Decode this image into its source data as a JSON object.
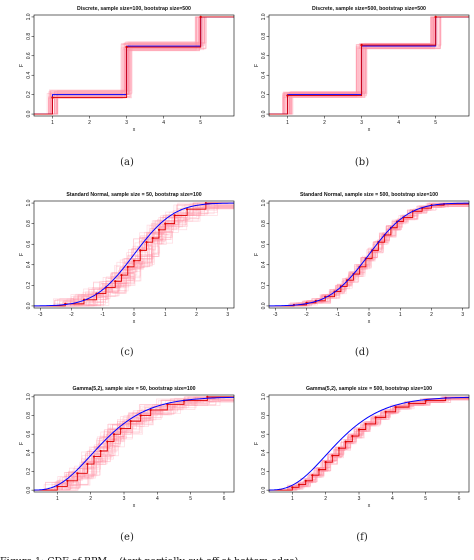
{
  "figure": {
    "footer_text": "Figure 1: CDF of BPM... (text partially cut off at bottom edge)"
  },
  "chart_data": [
    {
      "type": "line",
      "title": "Discrete, sample size=100, bootstrap size=500",
      "caption": "(a)",
      "xlabel": "x",
      "ylabel": "F",
      "xlim": [
        0.5,
        5.9
      ],
      "ylim": [
        -0.02,
        1.02
      ],
      "xticks": [
        "1",
        "2",
        "3",
        "4",
        "5"
      ],
      "yticks": [
        "0.0",
        "0.2",
        "0.4",
        "0.6",
        "0.8",
        "1.0"
      ],
      "kind": "discrete",
      "support": [
        1,
        3,
        5
      ],
      "true_steps": [
        0.2,
        0.7,
        1.0
      ],
      "estimate_steps": [
        0.17,
        0.69,
        1.0
      ],
      "series": [
        {
          "name": "",
          "color": "#0000ff",
          "role": "true CDF"
        },
        {
          "name": "",
          "color": "#ff0000",
          "role": "estimate"
        }
      ]
    },
    {
      "type": "line",
      "title": "Discrete, sample size=500, bootstrap size=500",
      "caption": "(b)",
      "xlabel": "x",
      "ylabel": "F",
      "xlim": [
        0.5,
        5.9
      ],
      "ylim": [
        -0.02,
        1.02
      ],
      "xticks": [
        "1",
        "2",
        "3",
        "4",
        "5"
      ],
      "yticks": [
        "0.0",
        "0.2",
        "0.4",
        "0.6",
        "0.8",
        "1.0"
      ],
      "kind": "discrete",
      "support": [
        1,
        3,
        5
      ],
      "true_steps": [
        0.2,
        0.7,
        1.0
      ],
      "estimate_steps": [
        0.19,
        0.71,
        1.0
      ],
      "series": [
        {
          "name": "",
          "color": "#0000ff",
          "role": "true CDF"
        },
        {
          "name": "",
          "color": "#ff0000",
          "role": "estimate"
        }
      ]
    },
    {
      "type": "line",
      "title": "Standard Normal, sample size = 50, bootstrap size=100",
      "caption": "(c)",
      "xlabel": "x",
      "ylabel": "F",
      "xlim": [
        -3.2,
        3.2
      ],
      "ylim": [
        -0.02,
        1.02
      ],
      "xticks": [
        "-3",
        "-2",
        "-1",
        "0",
        "1",
        "2",
        "3"
      ],
      "yticks": [
        "0.0",
        "0.2",
        "0.4",
        "0.6",
        "0.8",
        "1.0"
      ],
      "kind": "normal",
      "estimate_points": [
        [
          -2.2,
          0.02
        ],
        [
          -1.6,
          0.06
        ],
        [
          -1.2,
          0.12
        ],
        [
          -0.9,
          0.18
        ],
        [
          -0.6,
          0.24
        ],
        [
          -0.4,
          0.3
        ],
        [
          -0.2,
          0.38
        ],
        [
          0.0,
          0.44
        ],
        [
          0.2,
          0.54
        ],
        [
          0.4,
          0.62
        ],
        [
          0.6,
          0.66
        ],
        [
          0.8,
          0.74
        ],
        [
          1.0,
          0.8
        ],
        [
          1.3,
          0.88
        ],
        [
          1.7,
          0.94
        ],
        [
          2.3,
          1.0
        ]
      ],
      "series": [
        {
          "name": "",
          "color": "#0000ff",
          "role": "true CDF"
        },
        {
          "name": "",
          "color": "#ff0000",
          "role": "estimate"
        }
      ]
    },
    {
      "type": "line",
      "title": "Standard Normal, sample size = 500, bootstrap size=100",
      "caption": "(d)",
      "xlabel": "x",
      "ylabel": "F",
      "xlim": [
        -3.2,
        3.2
      ],
      "ylim": [
        -0.02,
        1.02
      ],
      "xticks": [
        "-3",
        "-2",
        "-1",
        "0",
        "1",
        "2",
        "3"
      ],
      "yticks": [
        "0.0",
        "0.2",
        "0.4",
        "0.6",
        "0.8",
        "1.0"
      ],
      "kind": "normal",
      "estimate_points": [
        [
          -2.4,
          0.01
        ],
        [
          -2.0,
          0.03
        ],
        [
          -1.7,
          0.05
        ],
        [
          -1.4,
          0.09
        ],
        [
          -1.1,
          0.14
        ],
        [
          -0.9,
          0.19
        ],
        [
          -0.7,
          0.25
        ],
        [
          -0.5,
          0.31
        ],
        [
          -0.3,
          0.38
        ],
        [
          -0.1,
          0.46
        ],
        [
          0.1,
          0.54
        ],
        [
          0.3,
          0.62
        ],
        [
          0.5,
          0.69
        ],
        [
          0.7,
          0.76
        ],
        [
          0.9,
          0.82
        ],
        [
          1.1,
          0.86
        ],
        [
          1.4,
          0.92
        ],
        [
          1.7,
          0.95
        ],
        [
          2.0,
          0.98
        ],
        [
          2.4,
          0.99
        ]
      ],
      "series": [
        {
          "name": "",
          "color": "#0000ff",
          "role": "true CDF"
        },
        {
          "name": "",
          "color": "#ff0000",
          "role": "estimate"
        }
      ]
    },
    {
      "type": "line",
      "title": "Gamma(5,2), sample size = 50, bootstrap size=100",
      "caption": "(e)",
      "xlabel": "x",
      "ylabel": "F",
      "xlim": [
        0.3,
        6.3
      ],
      "ylim": [
        -0.02,
        1.02
      ],
      "xticks": [
        "1",
        "2",
        "3",
        "4",
        "5",
        "6"
      ],
      "yticks": [
        "0.0",
        "0.2",
        "0.4",
        "0.6",
        "0.8",
        "1.0"
      ],
      "kind": "gamma",
      "estimate_points": [
        [
          1.0,
          0.04
        ],
        [
          1.3,
          0.1
        ],
        [
          1.6,
          0.18
        ],
        [
          1.9,
          0.28
        ],
        [
          2.1,
          0.36
        ],
        [
          2.3,
          0.42
        ],
        [
          2.5,
          0.52
        ],
        [
          2.7,
          0.6
        ],
        [
          2.9,
          0.66
        ],
        [
          3.2,
          0.74
        ],
        [
          3.5,
          0.8
        ],
        [
          3.8,
          0.86
        ],
        [
          4.3,
          0.92
        ],
        [
          4.8,
          0.96
        ],
        [
          5.5,
          1.0
        ]
      ],
      "series": [
        {
          "name": "",
          "color": "#0000ff",
          "role": "true CDF"
        },
        {
          "name": "",
          "color": "#ff0000",
          "role": "estimate"
        }
      ]
    },
    {
      "type": "line",
      "title": "Gamma(5,2), sample size = 500, bootstrap size=100",
      "caption": "(f)",
      "xlabel": "x",
      "ylabel": "F",
      "xlim": [
        0.3,
        6.3
      ],
      "ylim": [
        -0.02,
        1.02
      ],
      "xticks": [
        "1",
        "2",
        "3",
        "4",
        "5",
        "6"
      ],
      "yticks": [
        "0.0",
        "0.2",
        "0.4",
        "0.6",
        "0.8",
        "1.0"
      ],
      "kind": "gamma",
      "estimate_points": [
        [
          1.0,
          0.03
        ],
        [
          1.2,
          0.06
        ],
        [
          1.4,
          0.1
        ],
        [
          1.6,
          0.16
        ],
        [
          1.8,
          0.22
        ],
        [
          2.0,
          0.3
        ],
        [
          2.2,
          0.37
        ],
        [
          2.4,
          0.45
        ],
        [
          2.6,
          0.52
        ],
        [
          2.8,
          0.58
        ],
        [
          3.0,
          0.65
        ],
        [
          3.2,
          0.71
        ],
        [
          3.5,
          0.78
        ],
        [
          3.8,
          0.84
        ],
        [
          4.1,
          0.89
        ],
        [
          4.5,
          0.93
        ],
        [
          5.0,
          0.96
        ],
        [
          5.6,
          0.99
        ]
      ],
      "series": [
        {
          "name": "",
          "color": "#0000ff",
          "role": "true CDF"
        },
        {
          "name": "",
          "color": "#ff0000",
          "role": "estimate"
        }
      ]
    }
  ]
}
